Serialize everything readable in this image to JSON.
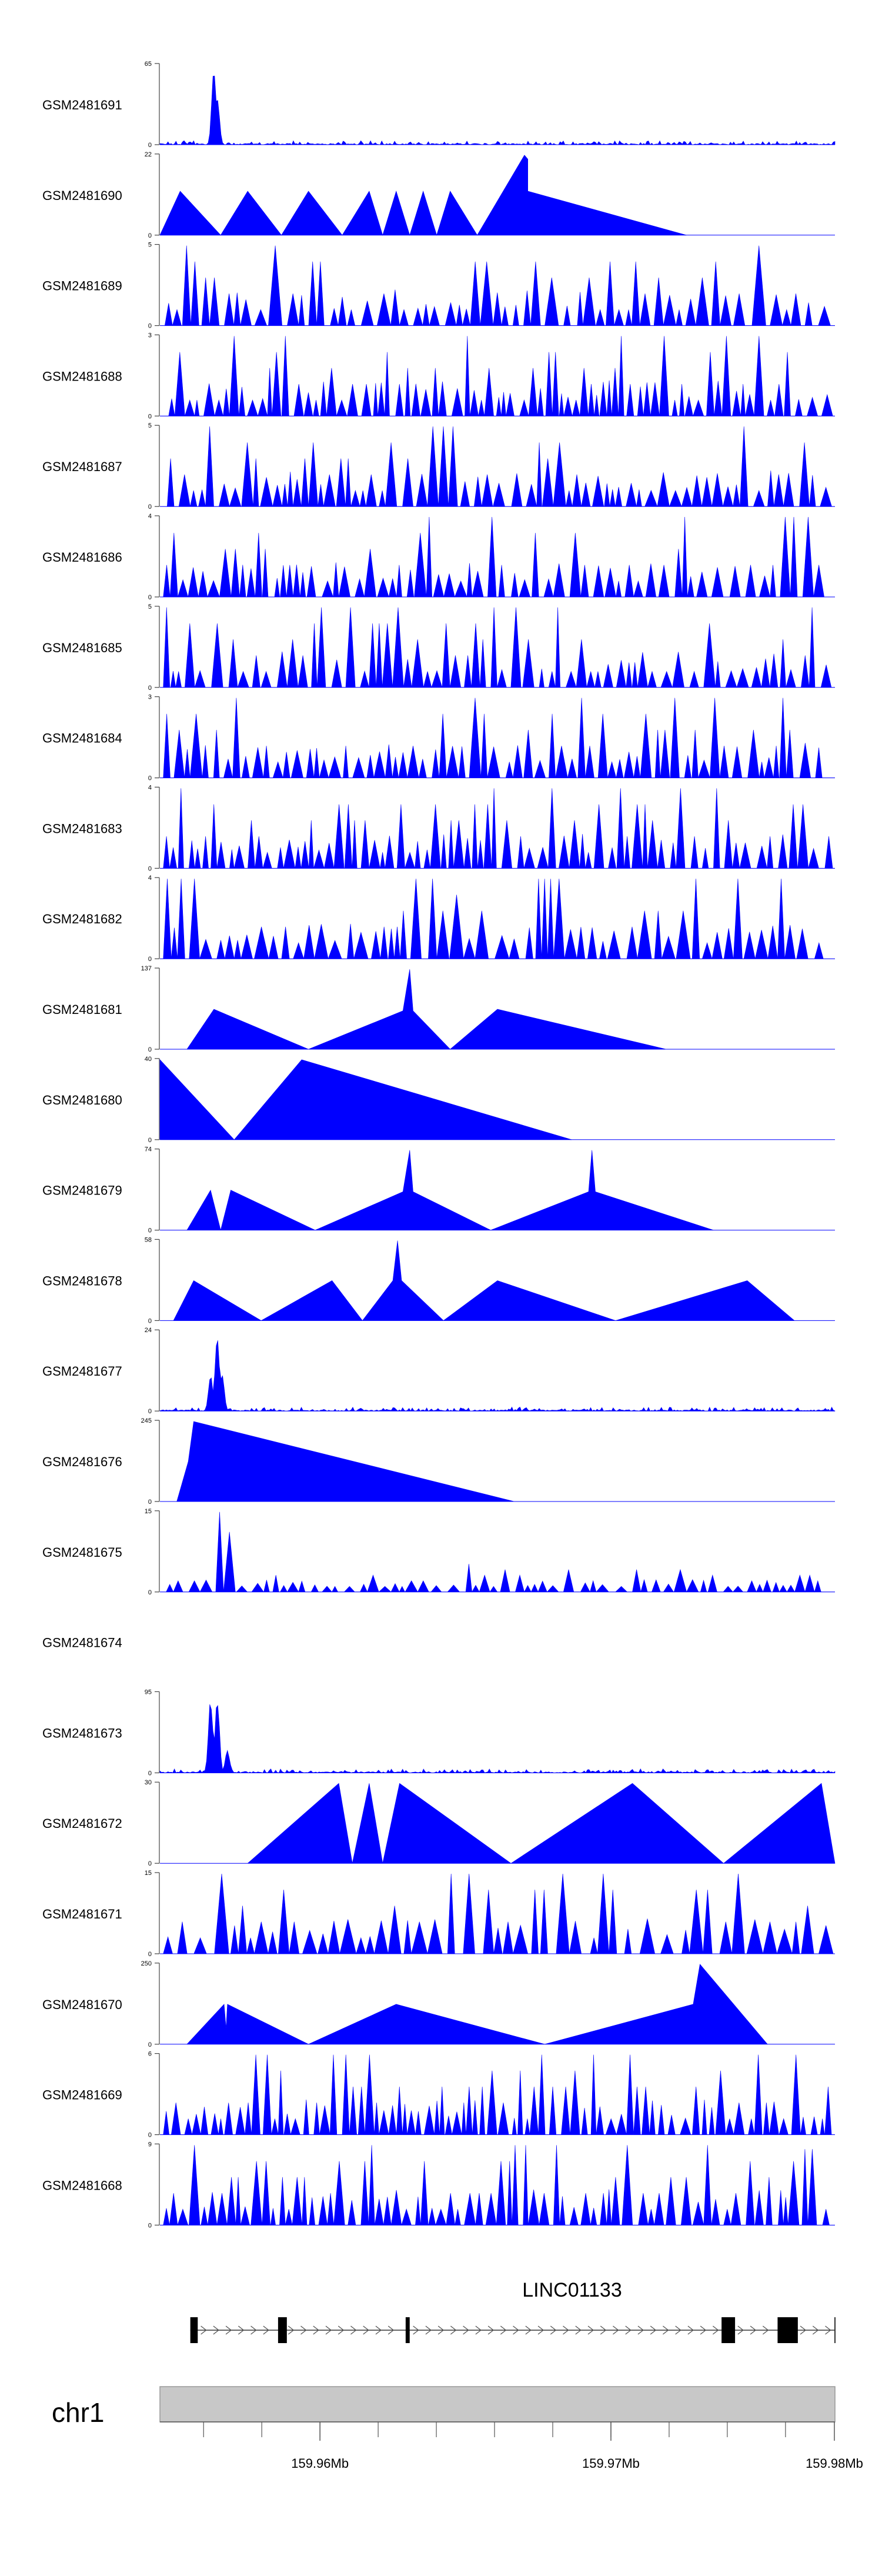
{
  "chart_data": {
    "type": "area",
    "title": "",
    "color": "#0000ff",
    "x_range_mb": [
      159.9545,
      159.9777
    ],
    "tracks": [
      {
        "name": "GSM2481691",
        "ymax": 65,
        "style": "noise_peak",
        "peaks": [
          [
            0.08,
            1.0
          ],
          [
            0.085,
            0.6
          ]
        ],
        "seed": 11
      },
      {
        "name": "GSM2481690",
        "ymax": 22,
        "style": "polygon",
        "points": [
          [
            0.0,
            0
          ],
          [
            0.03,
            0.55
          ],
          [
            0.09,
            0
          ],
          [
            0.13,
            0.55
          ],
          [
            0.18,
            0
          ],
          [
            0.22,
            0.55
          ],
          [
            0.27,
            0
          ],
          [
            0.31,
            0.55
          ],
          [
            0.33,
            0
          ],
          [
            0.35,
            0.55
          ],
          [
            0.37,
            0
          ],
          [
            0.39,
            0.55
          ],
          [
            0.41,
            0
          ],
          [
            0.43,
            0.55
          ],
          [
            0.47,
            0
          ],
          [
            0.54,
            1.0
          ],
          [
            0.545,
            0.95
          ],
          [
            0.545,
            0.55
          ],
          [
            0.78,
            0
          ]
        ]
      },
      {
        "name": "GSM2481689",
        "ymax": 5,
        "style": "spikes",
        "density": 72,
        "seed": 21
      },
      {
        "name": "GSM2481688",
        "ymax": 3,
        "style": "spikes",
        "density": 90,
        "seed": 22
      },
      {
        "name": "GSM2481687",
        "ymax": 5,
        "style": "spikes",
        "density": 80,
        "seed": 23,
        "peaks": [
          [
            0.42,
            1.0
          ]
        ]
      },
      {
        "name": "GSM2481686",
        "ymax": 4,
        "style": "spikes",
        "density": 82,
        "seed": 24
      },
      {
        "name": "GSM2481685",
        "ymax": 5,
        "style": "spikes",
        "density": 85,
        "seed": 25,
        "peaks": [
          [
            0.515,
            1.0
          ]
        ]
      },
      {
        "name": "GSM2481684",
        "ymax": 3,
        "style": "spikes",
        "density": 80,
        "seed": 26
      },
      {
        "name": "GSM2481683",
        "ymax": 4,
        "style": "spikes",
        "density": 88,
        "seed": 27
      },
      {
        "name": "GSM2481682",
        "ymax": 4,
        "style": "spikes",
        "density": 70,
        "seed": 28,
        "peaks": [
          [
            0.575,
            1.0
          ],
          [
            0.79,
            1.0
          ]
        ]
      },
      {
        "name": "GSM2481681",
        "ymax": 137,
        "style": "polygon",
        "points": [
          [
            0.04,
            0
          ],
          [
            0.08,
            0.5
          ],
          [
            0.22,
            0
          ],
          [
            0.36,
            0.48
          ],
          [
            0.37,
            1.0
          ],
          [
            0.375,
            0.48
          ],
          [
            0.43,
            0
          ],
          [
            0.5,
            0.5
          ],
          [
            0.75,
            0
          ]
        ]
      },
      {
        "name": "GSM2481680",
        "ymax": 40,
        "style": "polygon",
        "points": [
          [
            0.0,
            1.0
          ],
          [
            0.11,
            0
          ],
          [
            0.21,
            1.0
          ],
          [
            0.61,
            0
          ]
        ]
      },
      {
        "name": "GSM2481679",
        "ymax": 74,
        "style": "polygon",
        "points": [
          [
            0.04,
            0
          ],
          [
            0.075,
            0.5
          ],
          [
            0.09,
            0
          ],
          [
            0.105,
            0.5
          ],
          [
            0.23,
            0
          ],
          [
            0.36,
            0.48
          ],
          [
            0.37,
            1.0
          ],
          [
            0.375,
            0.48
          ],
          [
            0.49,
            0
          ],
          [
            0.635,
            0.48
          ],
          [
            0.64,
            1.0
          ],
          [
            0.645,
            0.48
          ],
          [
            0.82,
            0
          ]
        ]
      },
      {
        "name": "GSM2481678",
        "ymax": 58,
        "style": "polygon",
        "points": [
          [
            0.02,
            0
          ],
          [
            0.05,
            0.5
          ],
          [
            0.15,
            0
          ],
          [
            0.255,
            0.5
          ],
          [
            0.3,
            0
          ],
          [
            0.345,
            0.5
          ],
          [
            0.352,
            1.0
          ],
          [
            0.358,
            0.5
          ],
          [
            0.42,
            0
          ],
          [
            0.5,
            0.5
          ],
          [
            0.675,
            0
          ],
          [
            0.87,
            0.5
          ],
          [
            0.94,
            0
          ]
        ]
      },
      {
        "name": "GSM2481677",
        "ymax": 24,
        "style": "noise_peak",
        "peaks": [
          [
            0.085,
            1.0
          ],
          [
            0.075,
            0.45
          ],
          [
            0.092,
            0.5
          ]
        ],
        "seed": 31
      },
      {
        "name": "GSM2481676",
        "ymax": 245,
        "style": "polygon",
        "points": [
          [
            0.025,
            0
          ],
          [
            0.042,
            0.5
          ],
          [
            0.05,
            1.0
          ],
          [
            0.525,
            0
          ]
        ]
      },
      {
        "name": "GSM2481675",
        "ymax": 15,
        "style": "spikes_tall",
        "density": 78,
        "seed": 33,
        "peaks": [
          [
            0.08,
            1.0
          ],
          [
            0.085,
            0.75
          ]
        ]
      },
      {
        "name": "GSM2481674",
        "ymax": null,
        "style": "empty"
      },
      {
        "name": "GSM2481673",
        "ymax": 95,
        "style": "noise_peak",
        "peaks": [
          [
            0.075,
            1.0
          ],
          [
            0.085,
            0.95
          ],
          [
            0.1,
            0.3
          ]
        ],
        "seed": 35
      },
      {
        "name": "GSM2481672",
        "ymax": 30,
        "style": "polygon",
        "points": [
          [
            0.13,
            0
          ],
          [
            0.265,
            1.0
          ],
          [
            0.285,
            0
          ],
          [
            0.31,
            1.0
          ],
          [
            0.33,
            0
          ],
          [
            0.355,
            1.0
          ],
          [
            0.52,
            0
          ],
          [
            0.7,
            1.0
          ],
          [
            0.835,
            0
          ],
          [
            0.98,
            1.0
          ],
          [
            1.0,
            0
          ]
        ]
      },
      {
        "name": "GSM2481671",
        "ymax": 15,
        "style": "spikes",
        "density": 60,
        "seed": 37,
        "peaks": [
          [
            0.085,
            1.0
          ]
        ]
      },
      {
        "name": "GSM2481670",
        "ymax": 250,
        "style": "polygon",
        "points": [
          [
            0.04,
            0
          ],
          [
            0.095,
            0.5
          ],
          [
            0.098,
            0.2
          ],
          [
            0.1,
            0.5
          ],
          [
            0.22,
            0
          ],
          [
            0.35,
            0.5
          ],
          [
            0.57,
            0
          ],
          [
            0.79,
            0.5
          ],
          [
            0.8,
            1.0
          ],
          [
            0.9,
            0
          ]
        ]
      },
      {
        "name": "GSM2481669",
        "ymax": 6,
        "style": "spikes",
        "density": 95,
        "seed": 39,
        "peaks": [
          [
            0.26,
            1.0
          ]
        ]
      },
      {
        "name": "GSM2481668",
        "ymax": 9,
        "style": "spikes",
        "density": 90,
        "seed": 40,
        "peaks": [
          [
            0.95,
            0.95
          ]
        ]
      }
    ],
    "gene": {
      "name": "LINC01133",
      "exons": [
        [
          0.045,
          0.056
        ],
        [
          0.175,
          0.188
        ],
        [
          0.364,
          0.37
        ],
        [
          0.832,
          0.852
        ],
        [
          0.915,
          0.945
        ]
      ],
      "strand": "+"
    },
    "chromosome": {
      "label": "chr1",
      "ticks": [
        {
          "value": 159.96,
          "label": "159.96Mb"
        },
        {
          "value": 159.97,
          "label": "159.97Mb"
        },
        {
          "value": 159.98,
          "label": "159.98Mb"
        }
      ]
    }
  }
}
